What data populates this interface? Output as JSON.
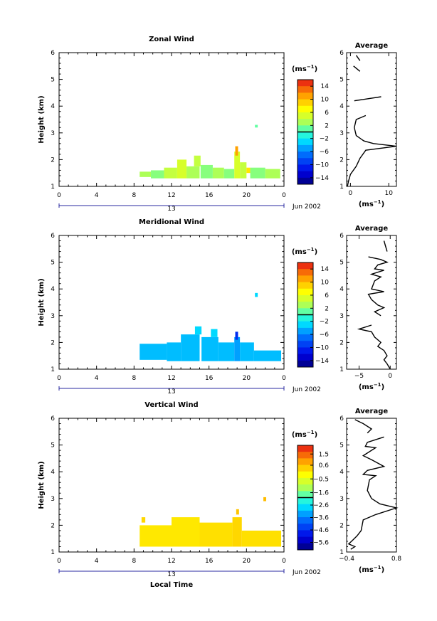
{
  "chart_data": [
    {
      "type": "heatmap",
      "title": "Zonal Wind",
      "xlabel": "",
      "ylabel": "Height (km)",
      "xlim": [
        0,
        24
      ],
      "ylim": [
        1,
        6
      ],
      "xticks": [
        "0",
        "4",
        "8",
        "12",
        "16",
        "20",
        "0"
      ],
      "yticks": [
        "1",
        "2",
        "3",
        "4",
        "5",
        "6"
      ],
      "date_day": "13",
      "date_label": "Jun 2002",
      "colorbar": {
        "unit": "(ms",
        "unit_exp": "−1",
        "unit_close": ")",
        "range": [
          -16,
          16
        ],
        "ticks": [
          14,
          10,
          6,
          2,
          -2,
          -6,
          -10,
          -14
        ],
        "tick_labels": [
          "14",
          "10",
          "6",
          "2",
          "−2",
          "−6",
          "−10",
          "−14"
        ]
      },
      "cells": [
        {
          "x0": 8.6,
          "x1": 9.8,
          "y0": 1.35,
          "y1": 1.55,
          "v": 3
        },
        {
          "x0": 9.8,
          "x1": 11.2,
          "y0": 1.3,
          "y1": 1.6,
          "v": 2
        },
        {
          "x0": 11.2,
          "x1": 12.6,
          "y0": 1.3,
          "y1": 1.7,
          "v": 4
        },
        {
          "x0": 12.6,
          "x1": 13.6,
          "y0": 1.3,
          "y1": 2.0,
          "v": 5
        },
        {
          "x0": 13.6,
          "x1": 15.0,
          "y0": 1.3,
          "y1": 1.75,
          "v": 3
        },
        {
          "x0": 14.4,
          "x1": 15.1,
          "y0": 1.75,
          "y1": 2.15,
          "v": 4
        },
        {
          "x0": 15.1,
          "x1": 16.4,
          "y0": 1.3,
          "y1": 1.8,
          "v": 2
        },
        {
          "x0": 16.4,
          "x1": 17.6,
          "y0": 1.3,
          "y1": 1.7,
          "v": 3
        },
        {
          "x0": 17.6,
          "x1": 18.7,
          "y0": 1.3,
          "y1": 1.65,
          "v": 2
        },
        {
          "x0": 18.7,
          "x1": 19.3,
          "y0": 1.3,
          "y1": 2.3,
          "v": 5
        },
        {
          "x0": 18.8,
          "x1": 19.1,
          "y0": 2.15,
          "y1": 2.5,
          "v": 11
        },
        {
          "x0": 19.3,
          "x1": 20.0,
          "y0": 1.3,
          "y1": 1.9,
          "v": 4
        },
        {
          "x0": 20.0,
          "x1": 20.4,
          "y0": 1.5,
          "y1": 1.7,
          "v": 8
        },
        {
          "x0": 20.4,
          "x1": 22.0,
          "y0": 1.3,
          "y1": 1.7,
          "v": 2
        },
        {
          "x0": 22.0,
          "x1": 23.6,
          "y0": 1.3,
          "y1": 1.65,
          "v": 3
        },
        {
          "x0": 20.9,
          "x1": 21.2,
          "y0": 3.2,
          "y1": 3.3,
          "v": 1
        }
      ],
      "average_panel": {
        "title": "Average",
        "xlabel": "(ms",
        "xlabel_exp": "−1",
        "xlabel_close": ")",
        "xlim": [
          -1,
          12
        ],
        "xticks": [
          0,
          10
        ],
        "xtick_labels": [
          "0",
          "10"
        ],
        "profile_segments": [
          [
            [
              1.5,
              5.9
            ],
            [
              2.5,
              5.7
            ]
          ],
          [
            [
              0.8,
              5.5
            ],
            [
              2.5,
              5.3
            ]
          ],
          [
            [
              1.0,
              4.2
            ],
            [
              8.0,
              4.35
            ]
          ],
          [
            [
              4.0,
              3.65
            ],
            [
              1.5,
              3.5
            ],
            [
              1.0,
              3.2
            ],
            [
              1.5,
              2.9
            ],
            [
              3.5,
              2.7
            ],
            [
              6.0,
              2.6
            ],
            [
              12.0,
              2.5
            ],
            [
              4.0,
              2.35
            ],
            [
              2.5,
              2.05
            ],
            [
              1.5,
              1.75
            ],
            [
              0.0,
              1.45
            ],
            [
              -0.5,
              1.2
            ],
            [
              -0.8,
              1.0
            ]
          ]
        ]
      }
    },
    {
      "type": "heatmap",
      "title": "Meridional Wind",
      "xlabel": "",
      "ylabel": "Height (km)",
      "xlim": [
        0,
        24
      ],
      "ylim": [
        1,
        6
      ],
      "xticks": [
        "0",
        "4",
        "8",
        "12",
        "16",
        "20",
        "0"
      ],
      "yticks": [
        "1",
        "2",
        "3",
        "4",
        "5",
        "6"
      ],
      "date_day": "13",
      "date_label": "Jun 2002",
      "colorbar": {
        "unit": "(ms",
        "unit_exp": "−1",
        "unit_close": ")",
        "range": [
          -16,
          16
        ],
        "ticks": [
          14,
          10,
          6,
          2,
          -2,
          -6,
          -10,
          -14
        ],
        "tick_labels": [
          "14",
          "10",
          "6",
          "2",
          "−2",
          "−6",
          "−10",
          "−14"
        ]
      },
      "cells": [
        {
          "x0": 8.6,
          "x1": 11.5,
          "y0": 1.35,
          "y1": 1.95,
          "v": -4
        },
        {
          "x0": 11.5,
          "x1": 13.0,
          "y0": 1.3,
          "y1": 2.0,
          "v": -4
        },
        {
          "x0": 13.0,
          "x1": 15.0,
          "y0": 1.3,
          "y1": 2.3,
          "v": -4
        },
        {
          "x0": 14.5,
          "x1": 15.2,
          "y0": 2.3,
          "y1": 2.6,
          "v": -3
        },
        {
          "x0": 15.2,
          "x1": 17.0,
          "y0": 1.3,
          "y1": 2.2,
          "v": -4
        },
        {
          "x0": 16.2,
          "x1": 16.9,
          "y0": 2.2,
          "y1": 2.5,
          "v": -3
        },
        {
          "x0": 17.0,
          "x1": 18.7,
          "y0": 1.3,
          "y1": 2.0,
          "v": -4
        },
        {
          "x0": 18.7,
          "x1": 19.3,
          "y0": 1.3,
          "y1": 2.2,
          "v": -5
        },
        {
          "x0": 18.8,
          "x1": 19.1,
          "y0": 2.1,
          "y1": 2.4,
          "v": -10
        },
        {
          "x0": 19.3,
          "x1": 20.8,
          "y0": 1.3,
          "y1": 2.0,
          "v": -4
        },
        {
          "x0": 20.8,
          "x1": 23.7,
          "y0": 1.3,
          "y1": 1.7,
          "v": -4
        },
        {
          "x0": 20.9,
          "x1": 21.2,
          "y0": 3.7,
          "y1": 3.85,
          "v": -3
        }
      ],
      "average_panel": {
        "title": "Average",
        "xlabel": "(ms",
        "xlabel_exp": "−1",
        "xlabel_close": ")",
        "xlim": [
          -7,
          1
        ],
        "xticks": [
          -5,
          0
        ],
        "xtick_labels": [
          "−5",
          "0"
        ],
        "profile_segments": [
          [
            [
              -1.0,
              5.8
            ],
            [
              -0.5,
              5.4
            ]
          ],
          [
            [
              -3.5,
              5.2
            ],
            [
              -1.5,
              5.1
            ],
            [
              -0.5,
              5.0
            ],
            [
              -2.0,
              4.9
            ],
            [
              -2.5,
              4.75
            ],
            [
              -1.0,
              4.7
            ],
            [
              -3.0,
              4.55
            ],
            [
              -1.5,
              4.45
            ],
            [
              -2.5,
              4.3
            ],
            [
              -3.0,
              4.0
            ],
            [
              -1.0,
              3.9
            ],
            [
              -3.5,
              3.8
            ],
            [
              -3.0,
              3.6
            ],
            [
              -2.0,
              3.4
            ],
            [
              -1.0,
              3.3
            ],
            [
              -2.5,
              3.15
            ],
            [
              -1.5,
              3.0
            ]
          ],
          [
            [
              -3.0,
              2.65
            ],
            [
              -5.0,
              2.5
            ],
            [
              -3.0,
              2.4
            ],
            [
              -2.5,
              2.2
            ],
            [
              -1.5,
              2.0
            ],
            [
              -2.0,
              1.85
            ],
            [
              -1.0,
              1.7
            ],
            [
              -0.5,
              1.5
            ],
            [
              -1.0,
              1.35
            ],
            [
              -0.5,
              1.2
            ],
            [
              0.0,
              1.0
            ]
          ]
        ]
      }
    },
    {
      "type": "heatmap",
      "title": "Vertical Wind",
      "xlabel": "Local Time",
      "ylabel": "Height (km)",
      "xlim": [
        0,
        24
      ],
      "ylim": [
        1,
        6
      ],
      "xticks": [
        "0",
        "4",
        "8",
        "12",
        "16",
        "20",
        "0"
      ],
      "yticks": [
        "1",
        "2",
        "3",
        "4",
        "5",
        "6"
      ],
      "date_day": "13",
      "date_label": "Jun 2002",
      "colorbar": {
        "unit": "(ms",
        "unit_exp": "−1",
        "unit_close": ")",
        "range": [
          -6.2,
          2.2
        ],
        "ticks": [
          1.5,
          0.6,
          -0.5,
          -1.6,
          -2.6,
          -3.6,
          -4.6,
          -5.6
        ],
        "tick_labels": [
          "1.5",
          "0.6",
          "−0.5",
          "−1.6",
          "−2.6",
          "−3.6",
          "−4.6",
          "−5.6"
        ]
      },
      "cells": [
        {
          "x0": 8.6,
          "x1": 12.0,
          "y0": 1.2,
          "y1": 2.0,
          "v": 0.1
        },
        {
          "x0": 8.8,
          "x1": 9.2,
          "y0": 2.1,
          "y1": 2.3,
          "v": 0.3
        },
        {
          "x0": 12.0,
          "x1": 15.0,
          "y0": 1.2,
          "y1": 2.3,
          "v": 0.1
        },
        {
          "x0": 15.0,
          "x1": 18.5,
          "y0": 1.2,
          "y1": 2.1,
          "v": 0.2
        },
        {
          "x0": 18.5,
          "x1": 19.5,
          "y0": 1.2,
          "y1": 2.3,
          "v": 0.3
        },
        {
          "x0": 18.9,
          "x1": 19.2,
          "y0": 2.4,
          "y1": 2.6,
          "v": 0.5
        },
        {
          "x0": 19.5,
          "x1": 23.7,
          "y0": 1.2,
          "y1": 1.8,
          "v": 0.2
        },
        {
          "x0": 21.8,
          "x1": 22.1,
          "y0": 2.9,
          "y1": 3.05,
          "v": 0.6
        }
      ],
      "average_panel": {
        "title": "Average",
        "xlabel": "(ms",
        "xlabel_exp": "−1",
        "xlabel_close": ")",
        "xlim": [
          -0.4,
          0.8
        ],
        "xticks": [
          -0.4,
          0.8
        ],
        "xtick_labels": [
          "−0.4",
          "0.8"
        ],
        "profile_segments": [
          [
            [
              -0.2,
              5.95
            ],
            [
              0.0,
              5.8
            ],
            [
              0.2,
              5.6
            ],
            [
              0.1,
              5.45
            ]
          ],
          [
            [
              0.5,
              5.3
            ],
            [
              0.1,
              5.1
            ],
            [
              0.05,
              4.95
            ],
            [
              0.3,
              4.9
            ],
            [
              0.0,
              4.6
            ],
            [
              0.2,
              4.45
            ],
            [
              0.5,
              4.2
            ],
            [
              0.1,
              4.05
            ],
            [
              0.0,
              3.9
            ],
            [
              0.3,
              3.85
            ],
            [
              0.15,
              3.7
            ],
            [
              0.1,
              3.3
            ],
            [
              0.2,
              3.0
            ],
            [
              0.4,
              2.8
            ],
            [
              0.8,
              2.65
            ],
            [
              0.3,
              2.4
            ],
            [
              0.0,
              2.2
            ],
            [
              -0.05,
              1.8
            ],
            [
              -0.15,
              1.6
            ],
            [
              -0.25,
              1.45
            ],
            [
              -0.35,
              1.3
            ],
            [
              -0.2,
              1.2
            ],
            [
              -0.3,
              1.1
            ]
          ]
        ]
      }
    }
  ]
}
